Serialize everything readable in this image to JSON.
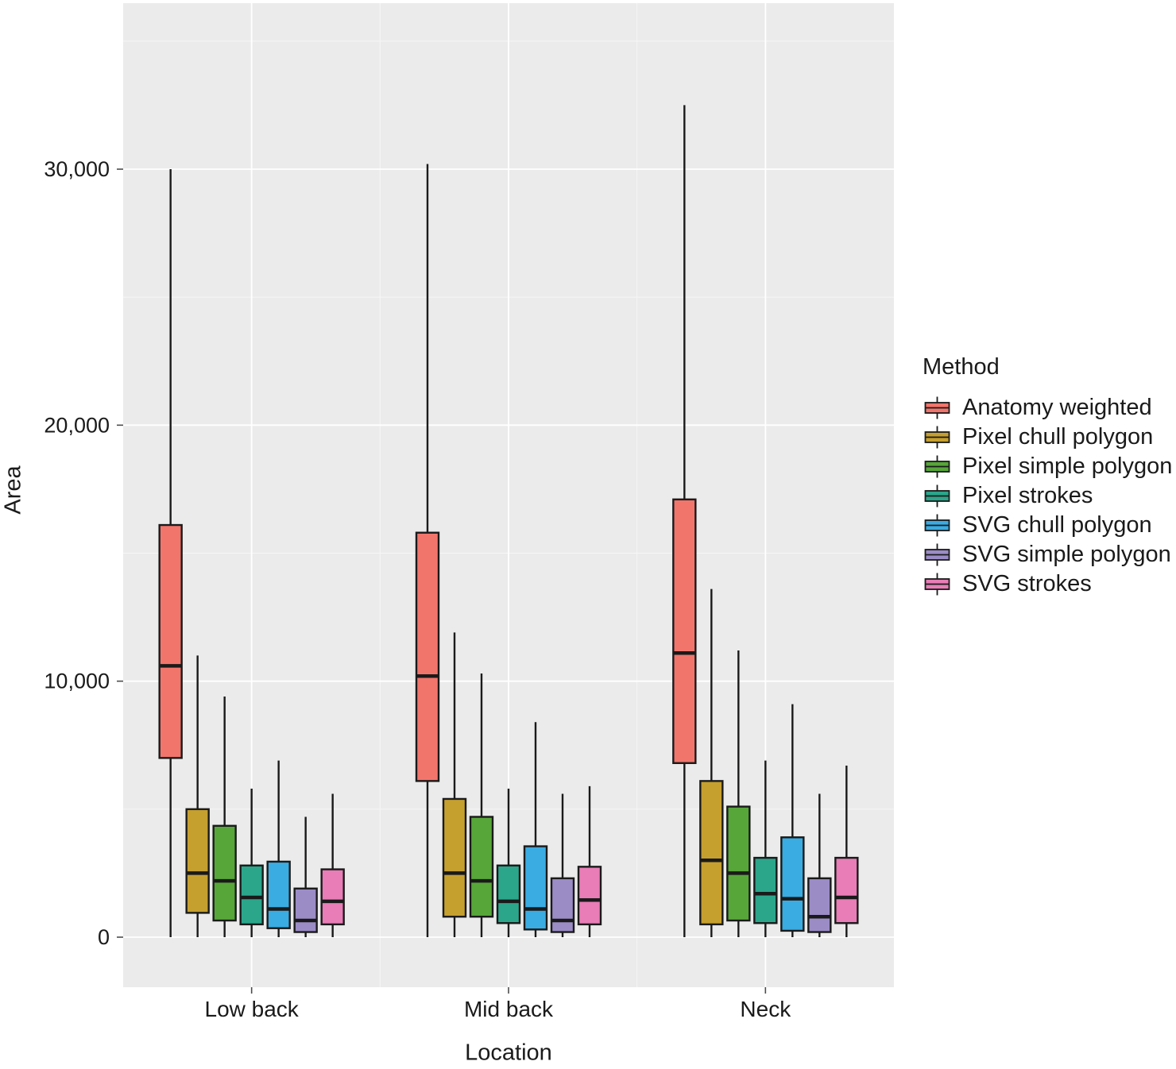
{
  "figure": {
    "background": "#FFFFFF",
    "panel_background": "#EBEBEB",
    "gridline_major_color": "#FFFFFF",
    "gridline_minor_color": "#F6F6F6",
    "box_outline_color": "#1A1A1A",
    "text_color": "#1A1A1A"
  },
  "chart_data": {
    "type": "boxplot",
    "title": "",
    "xlabel": "Location",
    "ylabel": "Area",
    "legend_title": "Method",
    "legend_position": "right",
    "grid": true,
    "categories": [
      "Low back",
      "Mid back",
      "Neck"
    ],
    "y_ticks": [
      0,
      10000,
      20000,
      30000
    ],
    "y_tick_labels": [
      "0",
      "10,000",
      "20,000",
      "30,000"
    ],
    "y_minor_ticks": [
      5000,
      15000,
      25000,
      35000
    ],
    "ylim": [
      -1950,
      36400
    ],
    "series": [
      {
        "name": "Anatomy weighted",
        "color": "#F2756C",
        "boxes": [
          {
            "low": 0,
            "q1": 7000,
            "median": 10600,
            "q3": 16100,
            "high": 30000
          },
          {
            "low": 0,
            "q1": 6100,
            "median": 10200,
            "q3": 15800,
            "high": 30200
          },
          {
            "low": 0,
            "q1": 6800,
            "median": 11100,
            "q3": 17100,
            "high": 32500
          }
        ]
      },
      {
        "name": "Pixel chull polygon",
        "color": "#C6A02F",
        "boxes": [
          {
            "low": 0,
            "q1": 950,
            "median": 2500,
            "q3": 5000,
            "high": 11000
          },
          {
            "low": 0,
            "q1": 800,
            "median": 2500,
            "q3": 5400,
            "high": 11900
          },
          {
            "low": 0,
            "q1": 500,
            "median": 3000,
            "q3": 6100,
            "high": 13600
          }
        ]
      },
      {
        "name": "Pixel simple polygon",
        "color": "#57A639",
        "boxes": [
          {
            "low": 0,
            "q1": 650,
            "median": 2200,
            "q3": 4350,
            "high": 9400
          },
          {
            "low": 0,
            "q1": 800,
            "median": 2200,
            "q3": 4700,
            "high": 10300
          },
          {
            "low": 0,
            "q1": 650,
            "median": 2500,
            "q3": 5100,
            "high": 11200
          }
        ]
      },
      {
        "name": "Pixel strokes",
        "color": "#2BA68B",
        "boxes": [
          {
            "low": 0,
            "q1": 500,
            "median": 1550,
            "q3": 2800,
            "high": 5800
          },
          {
            "low": 0,
            "q1": 550,
            "median": 1400,
            "q3": 2800,
            "high": 5800
          },
          {
            "low": 0,
            "q1": 550,
            "median": 1700,
            "q3": 3100,
            "high": 6900
          }
        ]
      },
      {
        "name": "SVG chull polygon",
        "color": "#3AACE2",
        "boxes": [
          {
            "low": 0,
            "q1": 350,
            "median": 1100,
            "q3": 2950,
            "high": 6900
          },
          {
            "low": 0,
            "q1": 300,
            "median": 1100,
            "q3": 3550,
            "high": 8400
          },
          {
            "low": 0,
            "q1": 250,
            "median": 1500,
            "q3": 3900,
            "high": 9100
          }
        ]
      },
      {
        "name": "SVG simple polygon",
        "color": "#9B8CC6",
        "boxes": [
          {
            "low": 0,
            "q1": 200,
            "median": 650,
            "q3": 1900,
            "high": 4700
          },
          {
            "low": 0,
            "q1": 200,
            "median": 650,
            "q3": 2300,
            "high": 5600
          },
          {
            "low": 0,
            "q1": 200,
            "median": 800,
            "q3": 2300,
            "high": 5600
          }
        ]
      },
      {
        "name": "SVG strokes",
        "color": "#E87DB7",
        "boxes": [
          {
            "low": 0,
            "q1": 500,
            "median": 1400,
            "q3": 2650,
            "high": 5600
          },
          {
            "low": 0,
            "q1": 500,
            "median": 1450,
            "q3": 2750,
            "high": 5900
          },
          {
            "low": 0,
            "q1": 550,
            "median": 1550,
            "q3": 3100,
            "high": 6700
          }
        ]
      }
    ]
  }
}
